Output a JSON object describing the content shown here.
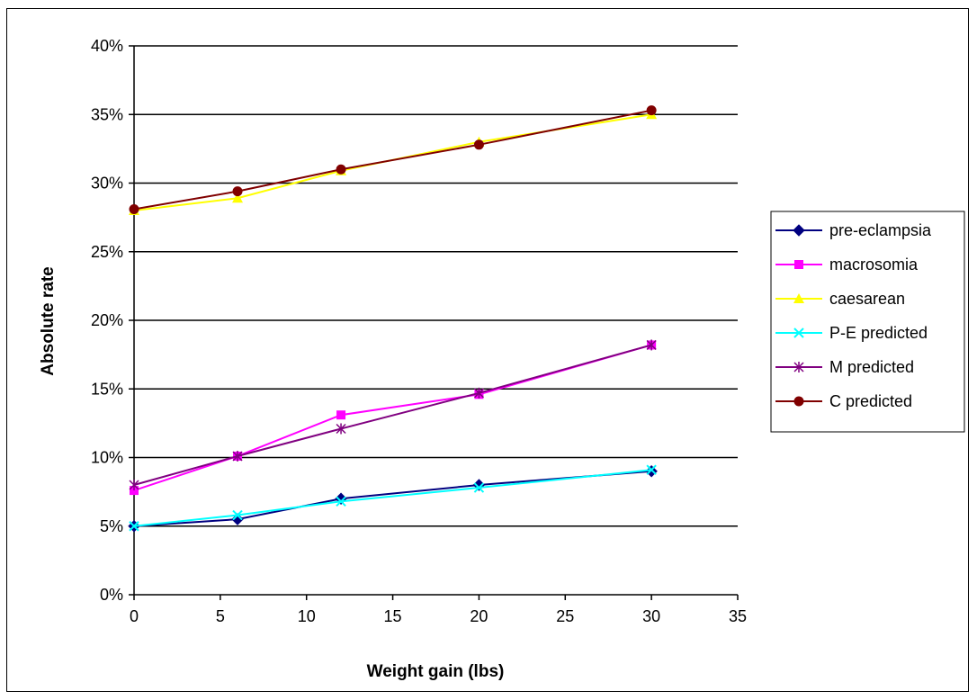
{
  "chart_data": {
    "type": "line",
    "title": "",
    "xlabel": "Weight gain (lbs)",
    "ylabel": "Absolute rate",
    "xlim": [
      0,
      35
    ],
    "ylim": [
      0,
      0.4
    ],
    "x_ticks": [
      0,
      5,
      10,
      15,
      20,
      25,
      30,
      35
    ],
    "x_tick_labels": [
      "0",
      "5",
      "10",
      "15",
      "20",
      "25",
      "30",
      "35"
    ],
    "y_ticks": [
      0,
      0.05,
      0.1,
      0.15,
      0.2,
      0.25,
      0.3,
      0.35,
      0.4
    ],
    "y_tick_labels": [
      "0%",
      "5%",
      "10%",
      "15%",
      "20%",
      "25%",
      "30%",
      "35%",
      "40%"
    ],
    "grid": "horizontal",
    "legend_position": "right",
    "series": [
      {
        "name": "pre-eclampsia",
        "color": "#000080",
        "marker": "diamond",
        "x": [
          0,
          6,
          12,
          20,
          30
        ],
        "y": [
          0.05,
          0.055,
          0.07,
          0.08,
          0.09
        ]
      },
      {
        "name": "macrosomia",
        "color": "#FF00FF",
        "marker": "square",
        "x": [
          0,
          6,
          12,
          20,
          30
        ],
        "y": [
          0.076,
          0.101,
          0.131,
          0.146,
          0.182
        ]
      },
      {
        "name": "caesarean",
        "color": "#FFFF00",
        "marker": "triangle",
        "x": [
          0,
          6,
          12,
          20,
          30
        ],
        "y": [
          0.28,
          0.289,
          0.309,
          0.33,
          0.35
        ]
      },
      {
        "name": "P-E predicted",
        "color": "#00FFFF",
        "marker": "x",
        "x": [
          0,
          6,
          12,
          20,
          30
        ],
        "y": [
          0.05,
          0.058,
          0.068,
          0.078,
          0.091
        ]
      },
      {
        "name": "M predicted",
        "color": "#800080",
        "marker": "star",
        "x": [
          0,
          6,
          12,
          20,
          30
        ],
        "y": [
          0.08,
          0.101,
          0.121,
          0.147,
          0.182
        ]
      },
      {
        "name": "C predicted",
        "color": "#800000",
        "marker": "circle",
        "x": [
          0,
          6,
          12,
          20,
          30
        ],
        "y": [
          0.281,
          0.294,
          0.31,
          0.328,
          0.353
        ]
      }
    ]
  }
}
